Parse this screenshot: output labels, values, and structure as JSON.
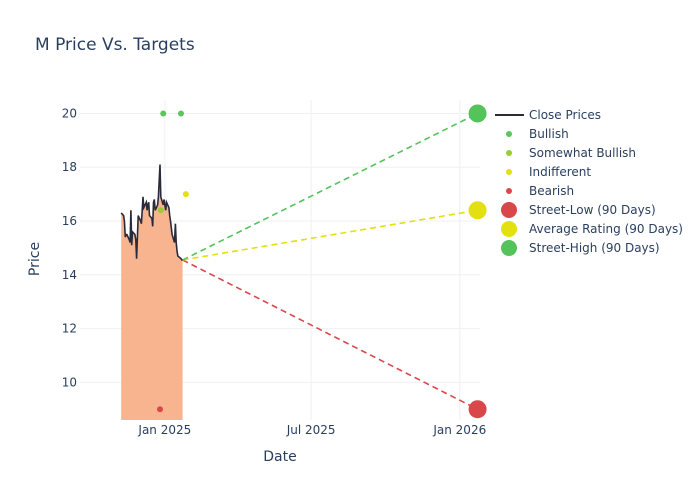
{
  "chart_data": {
    "type": "line",
    "title": "M Price Vs. Targets",
    "xlabel": "Date",
    "ylabel": "Price",
    "x_ticks": [
      {
        "date": "2025-01-01",
        "label": "Jan 2025"
      },
      {
        "date": "2025-07-01",
        "label": "Jul 2025"
      },
      {
        "date": "2026-01-01",
        "label": "Jan 2026"
      }
    ],
    "y_ticks": [
      10,
      12,
      14,
      16,
      18,
      20
    ],
    "ylim": [
      8.6,
      20.5
    ],
    "xlim": [
      "2024-09-18",
      "2026-01-26"
    ],
    "grid": true,
    "legend_position": "right",
    "close_prices": {
      "name": "Close Prices",
      "color": "#2a2a3a",
      "fill_color": "#f8b48e",
      "dates": [
        "2024-11-08",
        "2024-11-11",
        "2024-11-12",
        "2024-11-13",
        "2024-11-14",
        "2024-11-15",
        "2024-11-18",
        "2024-11-19",
        "2024-11-20",
        "2024-11-21",
        "2024-11-22",
        "2024-11-25",
        "2024-11-26",
        "2024-11-27",
        "2024-11-29",
        "2024-12-02",
        "2024-12-03",
        "2024-12-04",
        "2024-12-05",
        "2024-12-06",
        "2024-12-09",
        "2024-12-10",
        "2024-12-11",
        "2024-12-12",
        "2024-12-13",
        "2024-12-16",
        "2024-12-17",
        "2024-12-18",
        "2024-12-19",
        "2024-12-20",
        "2024-12-23",
        "2024-12-24",
        "2024-12-26",
        "2024-12-27",
        "2024-12-30",
        "2024-12-31",
        "2025-01-02",
        "2025-01-03",
        "2025-01-06",
        "2025-01-07",
        "2025-01-08",
        "2025-01-10",
        "2025-01-13",
        "2025-01-14",
        "2025-01-15",
        "2025-01-16",
        "2025-01-17",
        "2025-01-21",
        "2025-01-22",
        "2025-01-23"
      ],
      "values": [
        16.3,
        16.2,
        16.0,
        15.4,
        15.5,
        15.5,
        15.3,
        15.2,
        16.4,
        15.1,
        15.6,
        15.5,
        15.3,
        14.6,
        16.2,
        16.0,
        15.9,
        16.4,
        16.9,
        16.5,
        16.7,
        16.4,
        16.6,
        16.7,
        16.2,
        16.1,
        15.8,
        16.7,
        16.8,
        16.4,
        16.6,
        16.9,
        18.1,
        16.9,
        16.6,
        16.8,
        16.4,
        16.7,
        16.5,
        16.2,
        16.0,
        15.5,
        15.2,
        15.9,
        15.2,
        14.9,
        14.7,
        14.6,
        14.55,
        14.55
      ]
    },
    "ratings": [
      {
        "name": "Bullish",
        "color": "#59c75a",
        "points": [
          {
            "date": "2024-12-30",
            "value": 20.0
          },
          {
            "date": "2025-01-21",
            "value": 20.0
          }
        ]
      },
      {
        "name": "Somewhat Bullish",
        "color": "#9acd32",
        "points": [
          {
            "date": "2024-12-27",
            "value": 16.4
          }
        ]
      },
      {
        "name": "Indifferent",
        "color": "#e6de16",
        "points": [
          {
            "date": "2025-01-27",
            "value": 17.0
          }
        ]
      },
      {
        "name": "Bearish",
        "color": "#d9474b",
        "points": [
          {
            "date": "2024-12-26",
            "value": 9.0
          }
        ]
      }
    ],
    "targets": {
      "start": {
        "date": "2025-01-23",
        "value": 14.55
      },
      "end_date": "2026-01-23",
      "items": [
        {
          "name": "Street-Low (90 Days)",
          "value": 9.0,
          "color": "#d9474b"
        },
        {
          "name": "Average Rating (90 Days)",
          "value": 16.4,
          "color": "#e3e012"
        },
        {
          "name": "Street-High (90 Days)",
          "value": 20.0,
          "color": "#54c35a"
        }
      ]
    }
  }
}
